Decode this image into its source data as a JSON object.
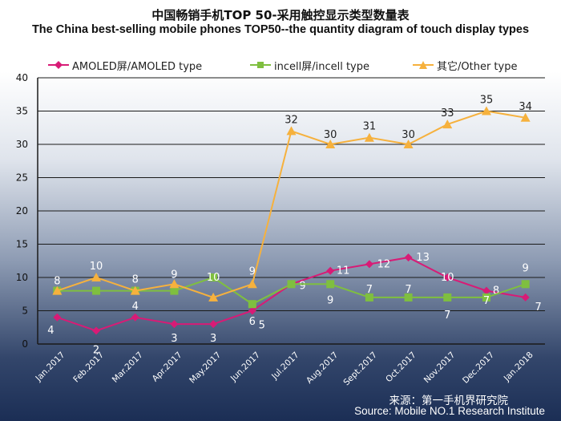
{
  "title_cn": "中国畅销手机TOP 50-采用触控显示类型数量表",
  "title_en": "The China best-selling mobile phones TOP50--the quantity diagram of touch display types",
  "source_cn": "来源：第一手机界研究院",
  "source_en": "Source: Mobile NO.1 Research Institute",
  "chart_data": {
    "type": "line",
    "categories": [
      "Jan.2017",
      "Feb.2017",
      "Mar.2017",
      "Apr.2017",
      "May.2017",
      "Jun.2017",
      "Jul.2017",
      "Aug.2017",
      "Sept.2017",
      "Oct.2017",
      "Nov.2017",
      "Dec.2017",
      "Jan.2018"
    ],
    "ylim": [
      0,
      40
    ],
    "yticks": [
      "0",
      "5",
      "10",
      "15",
      "20",
      "25",
      "30",
      "35",
      "40"
    ],
    "grid": true,
    "legend": "top",
    "series": [
      {
        "name": "AMOLED屏/AMOLED type",
        "color": "#d81b76",
        "marker": "diamond",
        "values": [
          4,
          2,
          4,
          3,
          3,
          5,
          9,
          11,
          12,
          13,
          10,
          8,
          7
        ]
      },
      {
        "name": "incell屏/incell type",
        "color": "#7fbf3f",
        "marker": "square",
        "values": [
          8,
          8,
          8,
          8,
          10,
          6,
          9,
          9,
          7,
          7,
          7,
          7,
          9
        ]
      },
      {
        "name": "其它/Other type",
        "color": "#f6b13d",
        "marker": "triangle",
        "values": [
          8,
          10,
          8,
          9,
          7,
          9,
          32,
          30,
          31,
          30,
          33,
          35,
          34
        ]
      }
    ]
  }
}
